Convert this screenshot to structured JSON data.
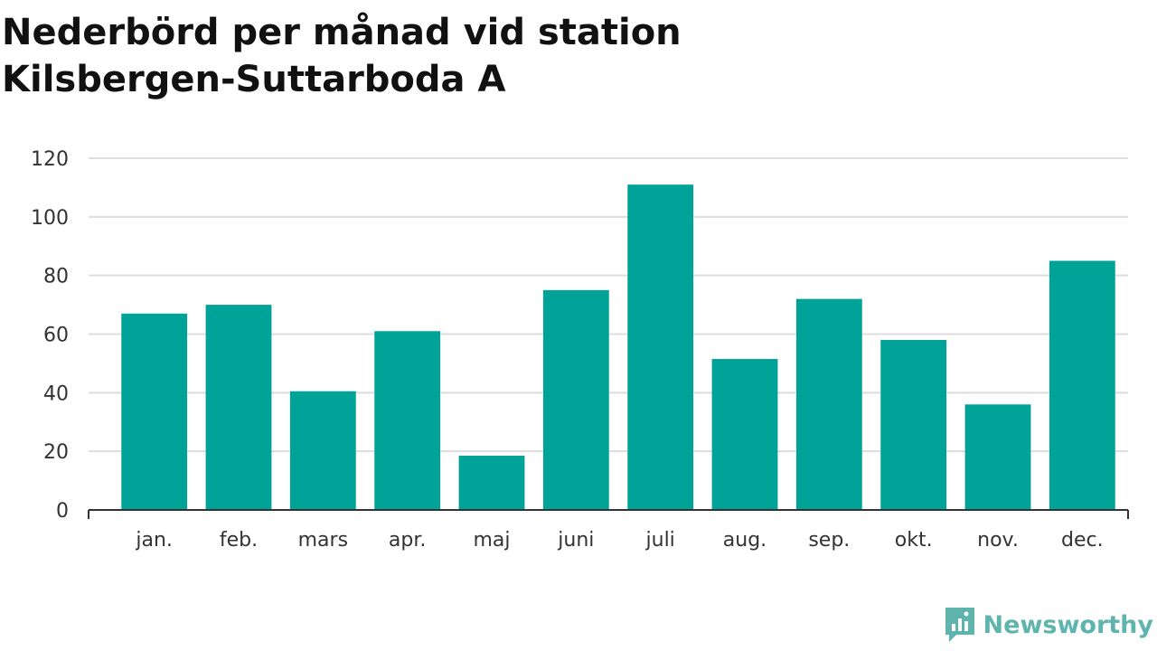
{
  "title": "Nederbörd per månad vid station Kilsbergen-Suttarboda A",
  "brand": {
    "name": "Newsworthy",
    "color": "#5fb5ad"
  },
  "colors": {
    "bar": "#00a398",
    "grid": "#dddddd",
    "axis": "#333333",
    "text": "#333333"
  },
  "chart_data": {
    "type": "bar",
    "title": "Nederbörd per månad vid station Kilsbergen-Suttarboda A",
    "xlabel": "",
    "ylabel": "",
    "categories": [
      "jan.",
      "feb.",
      "mars",
      "apr.",
      "maj",
      "juni",
      "juli",
      "aug.",
      "sep.",
      "okt.",
      "nov.",
      "dec."
    ],
    "values": [
      67,
      70,
      40.5,
      61,
      18.5,
      75,
      111,
      51.5,
      72,
      58,
      36,
      85
    ],
    "ylim": [
      0,
      120
    ],
    "yticks": [
      0,
      20,
      40,
      60,
      80,
      100,
      120
    ],
    "grid": true,
    "legend": "none"
  }
}
